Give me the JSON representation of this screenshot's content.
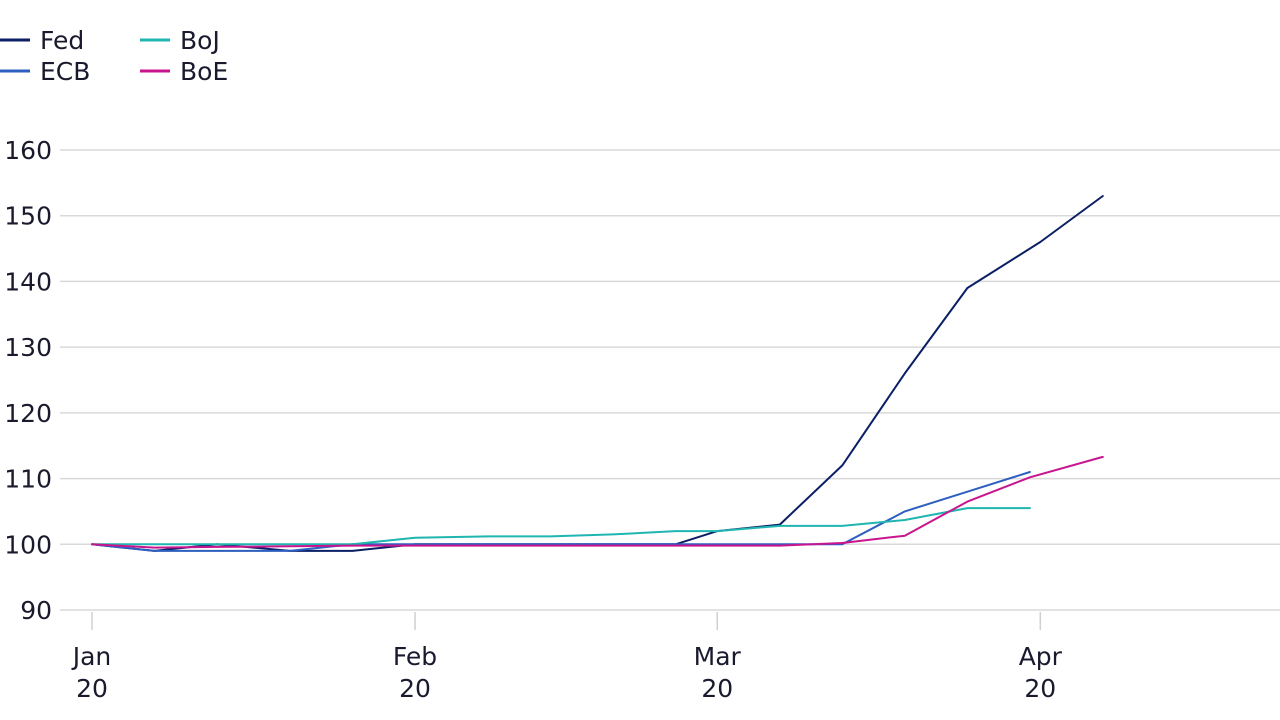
{
  "chart_data": {
    "type": "line",
    "title": "",
    "xlabel": "",
    "ylabel": "",
    "ylim": [
      90,
      160
    ],
    "xlim": [
      "2020-01-01",
      "2020-04-24"
    ],
    "grid": "horizontal",
    "legend_placement": "top-left",
    "y_ticks": [
      "90",
      "100",
      "110",
      "120",
      "130",
      "140",
      "150",
      "160"
    ],
    "x_ticks": [
      {
        "date": "2020-01-01",
        "line1": "Jan",
        "line2": "20"
      },
      {
        "date": "2020-02-01",
        "line1": "Feb",
        "line2": "20"
      },
      {
        "date": "2020-03-01",
        "line1": "Mar",
        "line2": "20"
      },
      {
        "date": "2020-04-01",
        "line1": "Apr",
        "line2": "20"
      }
    ],
    "series": [
      {
        "name": "Fed",
        "color": "#0b1f66",
        "points": [
          [
            "2020-01-01",
            100
          ],
          [
            "2020-01-07",
            99
          ],
          [
            "2020-01-13",
            100
          ],
          [
            "2020-01-20",
            99
          ],
          [
            "2020-01-26",
            99
          ],
          [
            "2020-02-01",
            100
          ],
          [
            "2020-02-08",
            100
          ],
          [
            "2020-02-14",
            100
          ],
          [
            "2020-02-20",
            100
          ],
          [
            "2020-02-26",
            100
          ],
          [
            "2020-03-01",
            102
          ],
          [
            "2020-03-07",
            103
          ],
          [
            "2020-03-13",
            112
          ],
          [
            "2020-03-19",
            126
          ],
          [
            "2020-03-25",
            139
          ],
          [
            "2020-04-01",
            146
          ],
          [
            "2020-04-07",
            153
          ]
        ]
      },
      {
        "name": "ECB",
        "color": "#2c5fbf",
        "points": [
          [
            "2020-01-01",
            100
          ],
          [
            "2020-01-07",
            99
          ],
          [
            "2020-01-13",
            99
          ],
          [
            "2020-01-20",
            99
          ],
          [
            "2020-01-26",
            100
          ],
          [
            "2020-02-01",
            100
          ],
          [
            "2020-02-08",
            100
          ],
          [
            "2020-02-14",
            100
          ],
          [
            "2020-02-20",
            100
          ],
          [
            "2020-02-26",
            100
          ],
          [
            "2020-03-01",
            100
          ],
          [
            "2020-03-07",
            100
          ],
          [
            "2020-03-13",
            100
          ],
          [
            "2020-03-19",
            105
          ],
          [
            "2020-03-25",
            108
          ],
          [
            "2020-03-31",
            111
          ]
        ]
      },
      {
        "name": "BoJ",
        "color": "#1fb5b0",
        "points": [
          [
            "2020-01-01",
            100
          ],
          [
            "2020-01-07",
            100
          ],
          [
            "2020-01-13",
            100
          ],
          [
            "2020-01-20",
            100
          ],
          [
            "2020-01-26",
            100
          ],
          [
            "2020-02-01",
            101
          ],
          [
            "2020-02-08",
            101.2
          ],
          [
            "2020-02-14",
            101.2
          ],
          [
            "2020-02-20",
            101.5
          ],
          [
            "2020-02-26",
            102
          ],
          [
            "2020-03-01",
            102
          ],
          [
            "2020-03-07",
            102.8
          ],
          [
            "2020-03-13",
            102.8
          ],
          [
            "2020-03-19",
            103.7
          ],
          [
            "2020-03-25",
            105.5
          ],
          [
            "2020-03-31",
            105.5
          ]
        ]
      },
      {
        "name": "BoE",
        "color": "#c8158f",
        "points": [
          [
            "2020-01-01",
            100
          ],
          [
            "2020-01-07",
            99.5
          ],
          [
            "2020-01-13",
            99.6
          ],
          [
            "2020-01-20",
            99.7
          ],
          [
            "2020-01-26",
            99.8
          ],
          [
            "2020-02-01",
            99.8
          ],
          [
            "2020-02-08",
            99.8
          ],
          [
            "2020-02-14",
            99.8
          ],
          [
            "2020-02-20",
            99.8
          ],
          [
            "2020-02-26",
            99.8
          ],
          [
            "2020-03-01",
            99.8
          ],
          [
            "2020-03-07",
            99.8
          ],
          [
            "2020-03-13",
            100.2
          ],
          [
            "2020-03-19",
            101.3
          ],
          [
            "2020-03-25",
            106.5
          ],
          [
            "2020-03-31",
            110.2
          ],
          [
            "2020-04-07",
            113.3
          ]
        ]
      }
    ]
  }
}
